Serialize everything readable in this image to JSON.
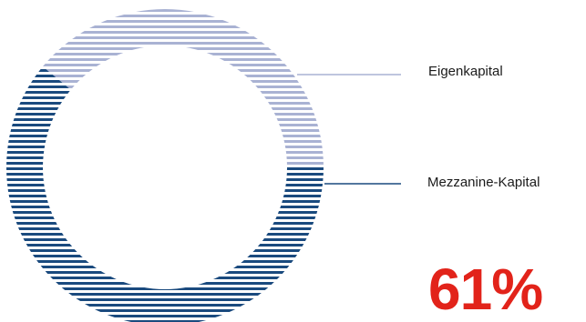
{
  "chart_data": {
    "type": "pie",
    "style": "donut",
    "fill_pattern": "horizontal-stripes",
    "categories": [
      "Eigenkapital",
      "Mezzanine-Kapital"
    ],
    "values": [
      39,
      61
    ],
    "colors": [
      "#a9b2d3",
      "#1a4a7e"
    ],
    "legend": "right, leader lines",
    "highlight": {
      "value": "61%",
      "color": "#e2231a"
    }
  }
}
